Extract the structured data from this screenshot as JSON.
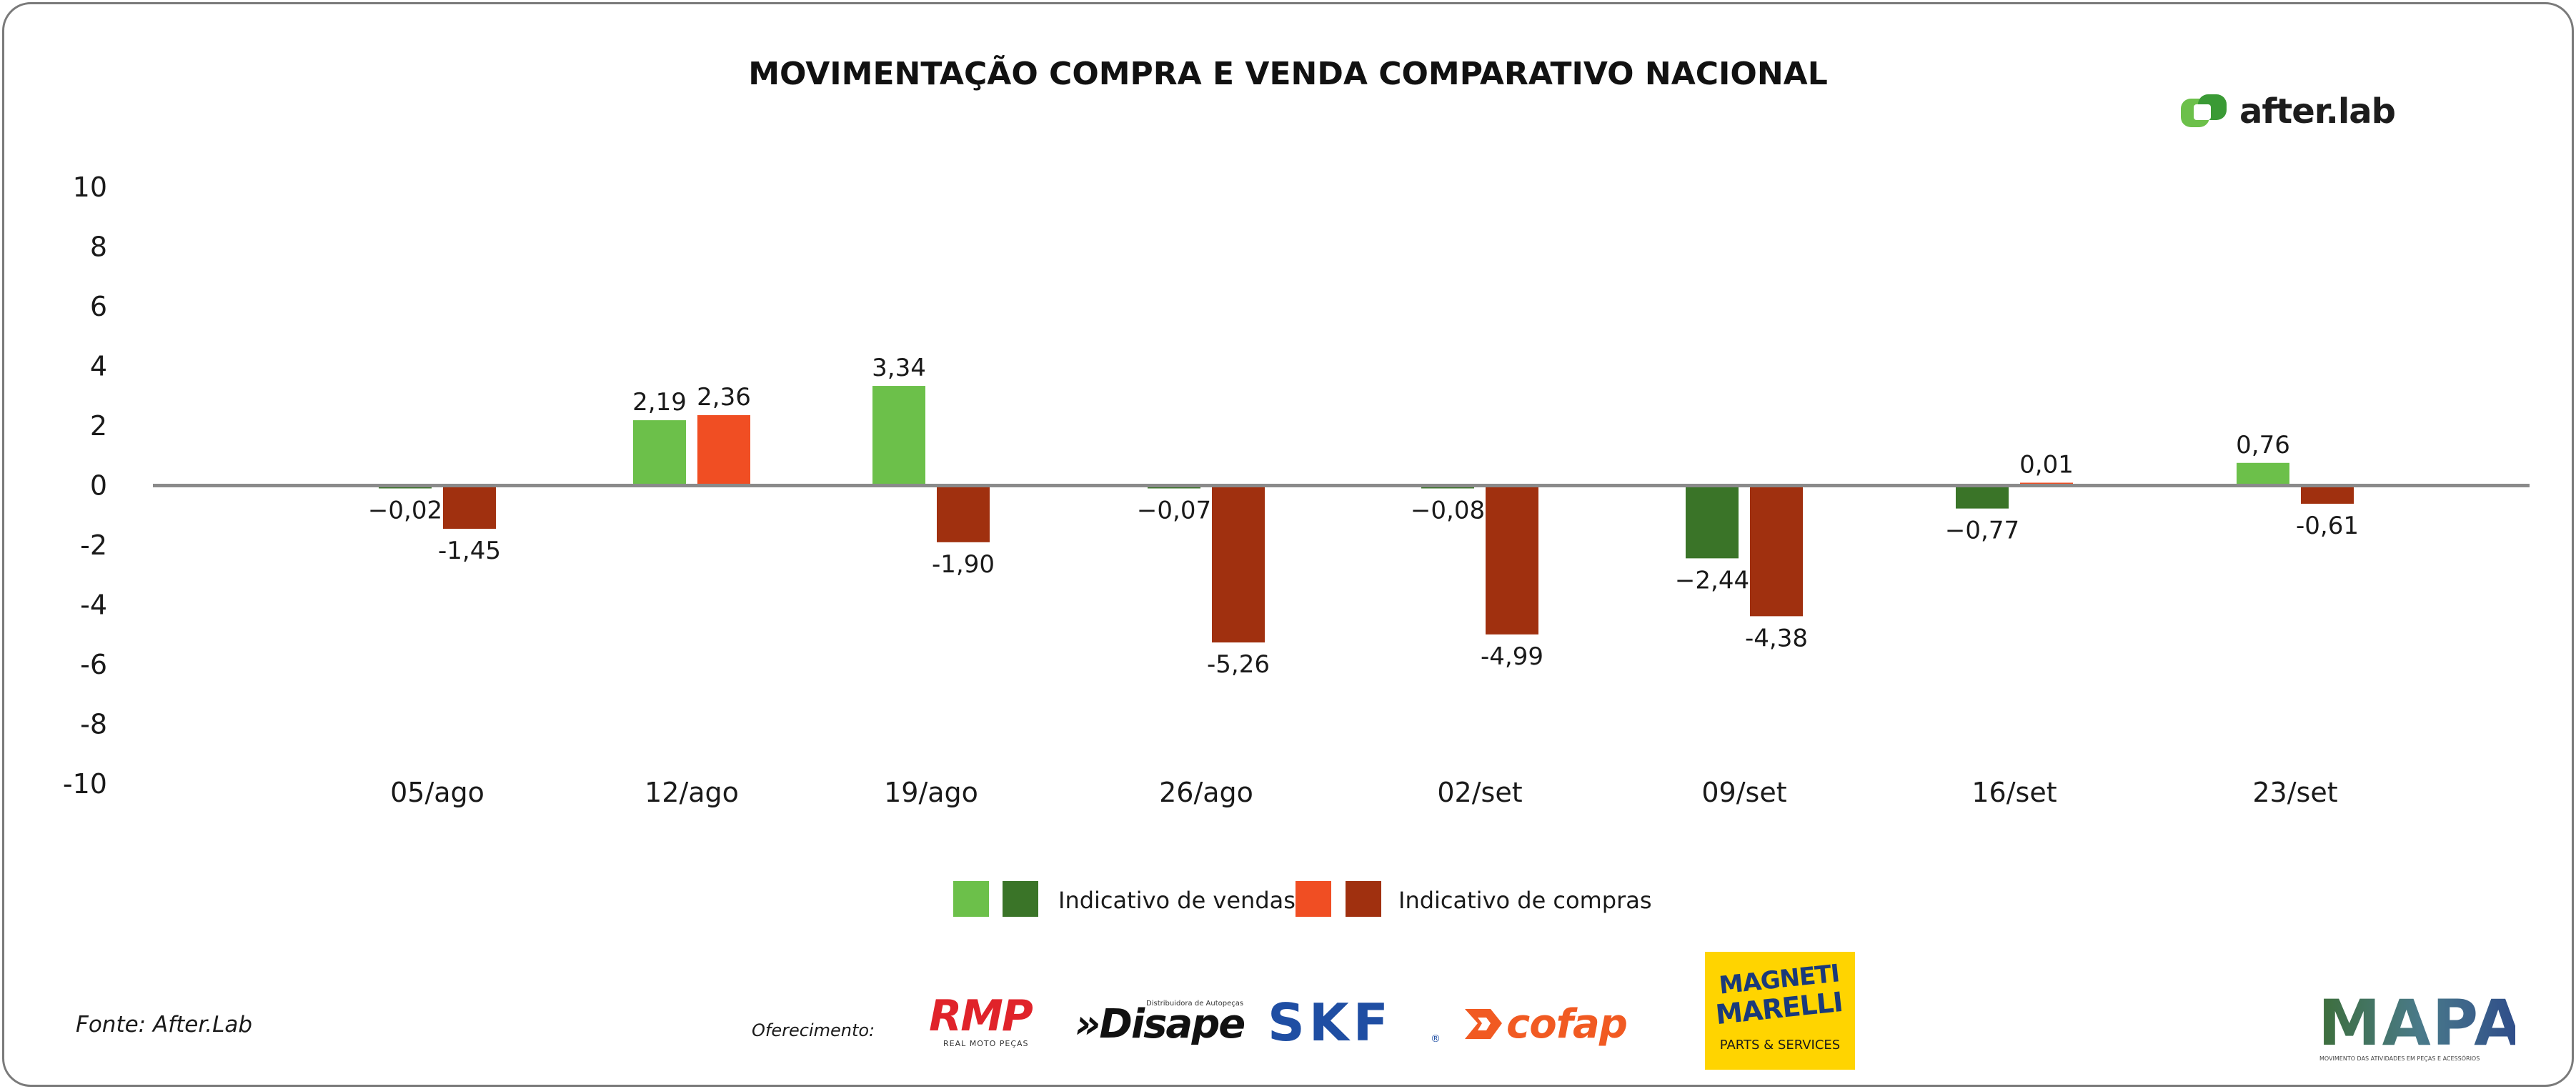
{
  "header": {
    "title": "MOVIMENTAÇÃO COMPRA E VENDA COMPARATIVO NACIONAL",
    "brand": "after.lab"
  },
  "chart_data": {
    "type": "bar",
    "categories": [
      "05/ago",
      "12/ago",
      "19/ago",
      "26/ago",
      "02/set",
      "09/set",
      "16/set",
      "23/set"
    ],
    "ylim": [
      -10,
      10
    ],
    "yticks": [
      "10",
      "8",
      "6",
      "4",
      "2",
      "0",
      "-2",
      "-4",
      "-6",
      "-8",
      "-10"
    ],
    "ytick_values": [
      10,
      8,
      6,
      4,
      2,
      0,
      -2,
      -4,
      -6,
      -8,
      -10
    ],
    "grid": false,
    "legend_position": "bottom-center",
    "series": [
      {
        "name": "Indicativo de vendas",
        "values": [
          -0.02,
          2.19,
          3.34,
          -0.07,
          -0.08,
          -2.44,
          -0.77,
          0.76
        ],
        "labels": [
          "−0,02",
          "2,19",
          "3,34",
          "−0,07",
          "−0,08",
          "−2,44",
          "−0,77",
          "0,76"
        ],
        "color_positive": "#6cc04a",
        "color_negative": "#3a7428"
      },
      {
        "name": "Indicativo de compras",
        "values": [
          -1.45,
          2.36,
          -1.9,
          -5.26,
          -4.99,
          -4.38,
          0.01,
          -0.61
        ],
        "labels": [
          "-1,45",
          "2,36",
          "-1,90",
          "-5,26",
          "-4,99",
          "-4,38",
          "0,01",
          "-0,61"
        ],
        "color_positive": "#f04e23",
        "color_negative": "#a0300f"
      }
    ]
  },
  "legend": {
    "vendas_label": "Indicativo de vendas",
    "compras_label": "Indicativo de compras",
    "colors": [
      "#6cc04a",
      "#3a7428",
      "#f04e23",
      "#a0300f"
    ]
  },
  "footer": {
    "source": "Fonte: After.Lab",
    "sponsor_label": "Oferecimento:",
    "sponsors": [
      {
        "name": "RMP",
        "subtitle": "REAL MOTO PEÇAS",
        "color": "#e0232a"
      },
      {
        "name": "Disape",
        "subtitle": "Distribuidora de Autopeças",
        "color": "#111111"
      },
      {
        "name": "SKF",
        "color": "#1f4ea3"
      },
      {
        "name": "cofap",
        "color": "#f15a22"
      },
      {
        "name": "MAGNETI MARELLI",
        "subtitle": "PARTS & SERVICES",
        "color": "#ffd400"
      },
      {
        "name": "MAPA",
        "subtitle": "MOVIMENTO DAS ATIVIDADES EM PEÇAS E ACESSÓRIOS",
        "color": "#3d6e6a"
      }
    ]
  }
}
